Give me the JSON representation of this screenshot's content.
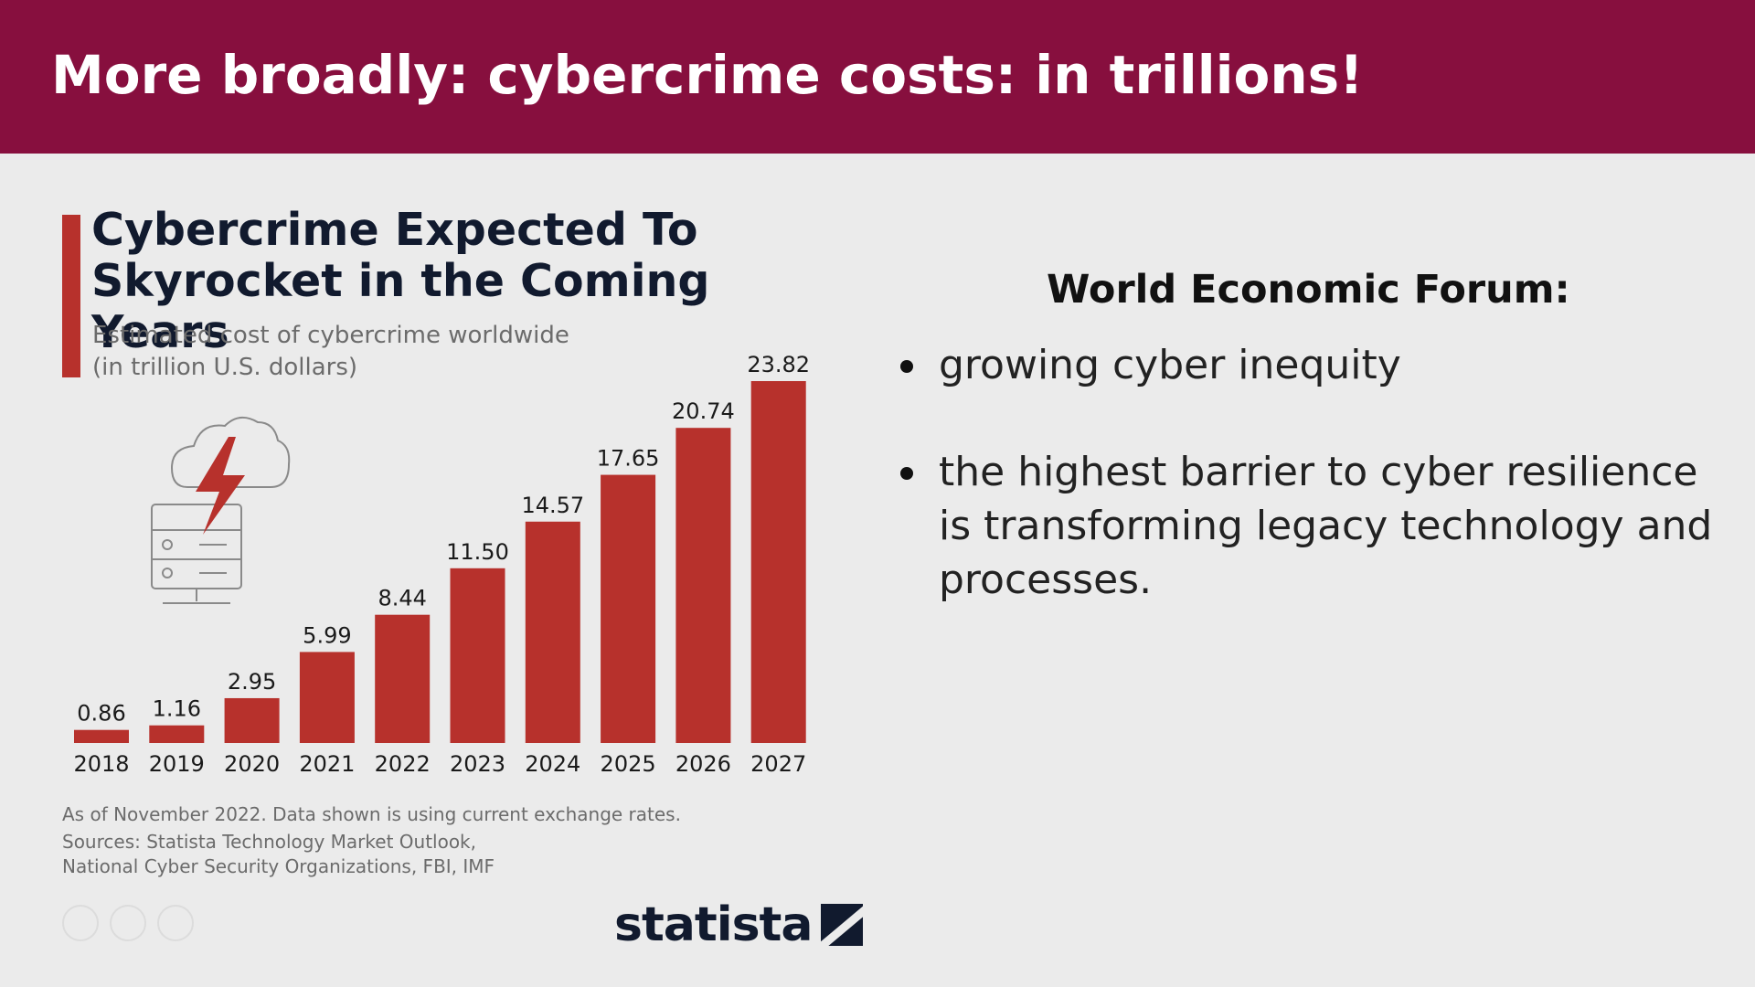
{
  "slide": {
    "title": "More broadly: cybercrime costs: in trillions!"
  },
  "colors": {
    "header": "#870f3e",
    "bar": "#b7312c",
    "text_dark": "#111a2e"
  },
  "chart_data": {
    "type": "bar",
    "title": "Cybercrime Expected To Skyrocket in the Coming Years",
    "subtitle_line1": "Estimated cost of cybercrime worldwide",
    "subtitle_line2": "(in trillion U.S. dollars)",
    "categories": [
      "2018",
      "2019",
      "2020",
      "2021",
      "2022",
      "2023",
      "2024",
      "2025",
      "2026",
      "2027"
    ],
    "values": [
      0.86,
      1.16,
      2.95,
      5.99,
      8.44,
      11.5,
      14.57,
      17.65,
      20.74,
      23.82
    ],
    "value_labels": [
      "0.86",
      "1.16",
      "2.95",
      "5.99",
      "8.44",
      "11.50",
      "14.57",
      "17.65",
      "20.74",
      "23.82"
    ],
    "ylim": [
      0,
      23.82
    ],
    "grid": false,
    "legend": "none",
    "decorative_icon": "cloud-server-lightning-icon",
    "footnote": "As of November 2022. Data shown is using current exchange rates.",
    "sources_line1": "Sources: Statista Technology Market Outlook,",
    "sources_line2": "National Cyber Security Organizations, FBI, IMF",
    "logo": "statista"
  },
  "wef": {
    "title": "World Economic Forum:",
    "bullets": [
      "growing cyber inequity",
      "the highest barrier to cyber resilience is transforming legacy technology and processes."
    ]
  }
}
